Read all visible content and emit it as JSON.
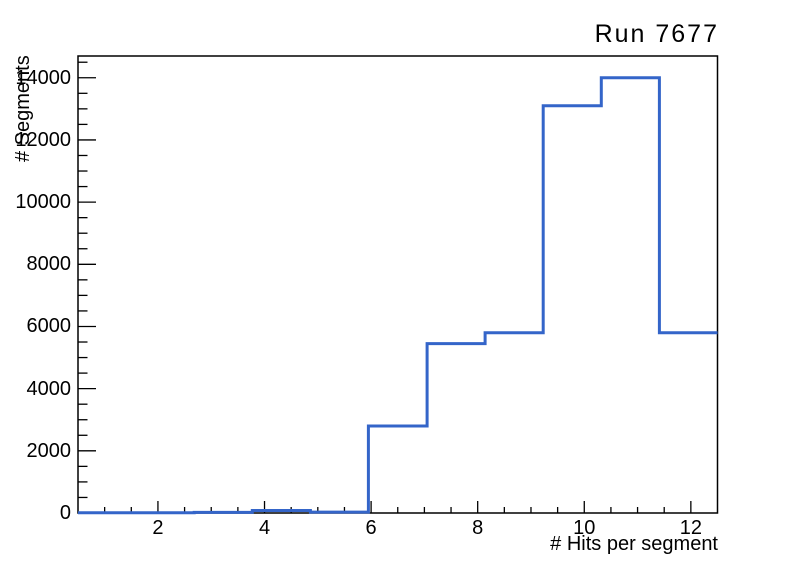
{
  "page": {
    "background": "#ffffff"
  },
  "chart_data": {
    "type": "bar",
    "style": "step-histogram-outline",
    "title": "Run 7677",
    "xlabel": "# Hits per segment",
    "ylabel": "# Segments",
    "xlim": [
      0.5,
      12.5
    ],
    "ylim": [
      0,
      14700
    ],
    "bin_edges": [
      0.5,
      1.59,
      2.68,
      3.77,
      4.86,
      5.95,
      7.05,
      8.14,
      9.23,
      10.32,
      11.41,
      12.5
    ],
    "values": [
      5,
      10,
      20,
      80,
      30,
      2800,
      5450,
      5800,
      13100,
      14000,
      5800
    ],
    "x_major_ticks": [
      2,
      4,
      6,
      8,
      10,
      12
    ],
    "x_tick_labels": [
      "2",
      "4",
      "6",
      "8",
      "10",
      "12"
    ],
    "x_minor_tick_step": 0.5,
    "y_major_ticks": [
      0,
      2000,
      4000,
      6000,
      8000,
      10000,
      12000,
      14000
    ],
    "y_tick_labels": [
      "0",
      "2000",
      "4000",
      "6000",
      "8000",
      "10000",
      "12000",
      "14000"
    ],
    "y_minor_tick_step": 500,
    "grid": false,
    "legend": null,
    "line_color": "#3465c9",
    "axis_color": "#000000",
    "text_color": "#000000"
  }
}
